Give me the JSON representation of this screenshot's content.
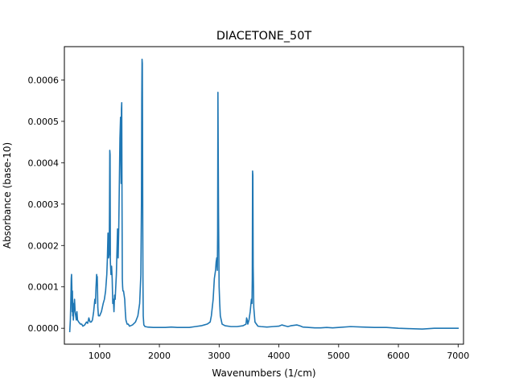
{
  "chart_data": {
    "type": "line",
    "title": "DIACETONE_50T",
    "xlabel": "Wavenumbers (1/cm)",
    "ylabel": "Absorbance (base-10)",
    "xlim": [
      410,
      7090
    ],
    "ylim": [
      -3.85e-05,
      0.0006805
    ],
    "x_ticks": [
      1000,
      2000,
      3000,
      4000,
      5000,
      6000,
      7000
    ],
    "x_tick_labels": [
      "1000",
      "2000",
      "3000",
      "4000",
      "5000",
      "6000",
      "7000"
    ],
    "y_ticks": [
      0.0,
      0.0001,
      0.0002,
      0.0003,
      0.0004,
      0.0005,
      0.0006
    ],
    "y_tick_labels": [
      "0.0000",
      "0.0001",
      "0.0002",
      "0.0003",
      "0.0004",
      "0.0005",
      "0.0006"
    ],
    "grid": false,
    "series": [
      {
        "color": "#1f77b4",
        "x": [
          500,
          510,
          520,
          525,
          530,
          535,
          540,
          545,
          550,
          555,
          560,
          570,
          580,
          590,
          600,
          610,
          620,
          630,
          650,
          680,
          700,
          720,
          750,
          780,
          800,
          820,
          840,
          860,
          880,
          900,
          920,
          930,
          940,
          950,
          955,
          960,
          965,
          970,
          980,
          1000,
          1030,
          1060,
          1080,
          1100,
          1120,
          1130,
          1140,
          1150,
          1160,
          1165,
          1170,
          1175,
          1180,
          1190,
          1200,
          1210,
          1220,
          1230,
          1240,
          1250,
          1260,
          1280,
          1300,
          1310,
          1320,
          1330,
          1340,
          1350,
          1360,
          1365,
          1370,
          1375,
          1380,
          1385,
          1390,
          1400,
          1410,
          1420,
          1430,
          1440,
          1460,
          1480,
          1500,
          1550,
          1600,
          1640,
          1670,
          1690,
          1700,
          1705,
          1710,
          1715,
          1718,
          1722,
          1725,
          1730,
          1740,
          1760,
          1800,
          1900,
          2000,
          2100,
          2200,
          2300,
          2400,
          2500,
          2600,
          2700,
          2750,
          2800,
          2850,
          2870,
          2900,
          2920,
          2940,
          2950,
          2960,
          2970,
          2975,
          2980,
          2985,
          2990,
          3000,
          3010,
          3020,
          3050,
          3100,
          3200,
          3300,
          3400,
          3450,
          3460,
          3470,
          3480,
          3500,
          3520,
          3540,
          3550,
          3555,
          3560,
          3565,
          3570,
          3580,
          3600,
          3650,
          3700,
          3800,
          3900,
          4000,
          4050,
          4100,
          4150,
          4200,
          4300,
          4350,
          4400,
          4500,
          4600,
          4700,
          4800,
          4900,
          5000,
          5200,
          5400,
          5600,
          5800,
          6000,
          6200,
          6400,
          6600,
          6800,
          7000
        ],
        "y": [
          -8e-06,
          2e-05,
          8e-05,
          0.00012,
          0.00013,
          0.0001,
          4e-05,
          9e-05,
          3e-05,
          6e-05,
          2e-05,
          5e-05,
          7e-05,
          4e-05,
          3e-05,
          2e-05,
          4e-05,
          2e-05,
          1.5e-05,
          1e-05,
          1e-05,
          5e-06,
          8e-06,
          1.5e-05,
          1.2e-05,
          2.5e-05,
          1.5e-05,
          1.5e-05,
          2e-05,
          4e-05,
          7e-05,
          6e-05,
          0.0001,
          0.00013,
          0.00012,
          0.000125,
          9e-05,
          5e-05,
          3e-05,
          3e-05,
          4e-05,
          6e-05,
          7e-05,
          9e-05,
          0.00013,
          0.00017,
          0.00023,
          0.00017,
          0.00018,
          0.00028,
          0.00043,
          0.00042,
          0.00016,
          0.00013,
          0.00015,
          0.00012,
          6e-05,
          7e-05,
          4e-05,
          8e-05,
          7e-05,
          0.00013,
          0.00024,
          0.00017,
          0.00024,
          0.00035,
          0.00046,
          0.00051,
          0.00035,
          0.00053,
          0.000545,
          0.0003,
          0.00012,
          0.0001,
          9e-05,
          9e-05,
          8e-05,
          7e-05,
          4e-05,
          2e-05,
          1e-05,
          1e-05,
          5e-06,
          8e-06,
          1.5e-05,
          3e-05,
          6e-05,
          0.00013,
          0.0003,
          0.00055,
          0.00065,
          0.00064,
          0.0005,
          0.00025,
          0.00012,
          3e-05,
          8e-06,
          4e-06,
          3e-06,
          2e-06,
          2e-06,
          2e-06,
          3e-06,
          2e-06,
          2e-06,
          2e-06,
          4e-06,
          6e-06,
          8e-06,
          1e-05,
          1.5e-05,
          3e-05,
          7e-05,
          0.00012,
          0.00014,
          0.00016,
          0.00017,
          0.00014,
          0.00023,
          0.00057,
          0.00042,
          0.00028,
          0.0001,
          6e-05,
          3e-05,
          1e-05,
          6e-06,
          4e-06,
          4e-06,
          6e-06,
          1e-05,
          2.5e-05,
          2e-05,
          1e-05,
          2e-05,
          4e-05,
          7e-05,
          6e-05,
          0.00012,
          0.00038,
          0.00037,
          0.00015,
          5e-05,
          1.5e-05,
          5e-06,
          4e-06,
          3e-06,
          4e-06,
          5e-06,
          8e-06,
          6e-06,
          4e-06,
          6e-06,
          8e-06,
          6e-06,
          3e-06,
          2e-06,
          1e-06,
          1e-06,
          2e-06,
          1e-06,
          2e-06,
          4e-06,
          3e-06,
          2e-06,
          2e-06,
          0.0,
          -1e-06,
          -2e-06,
          0.0,
          0.0,
          0.0
        ]
      }
    ]
  }
}
